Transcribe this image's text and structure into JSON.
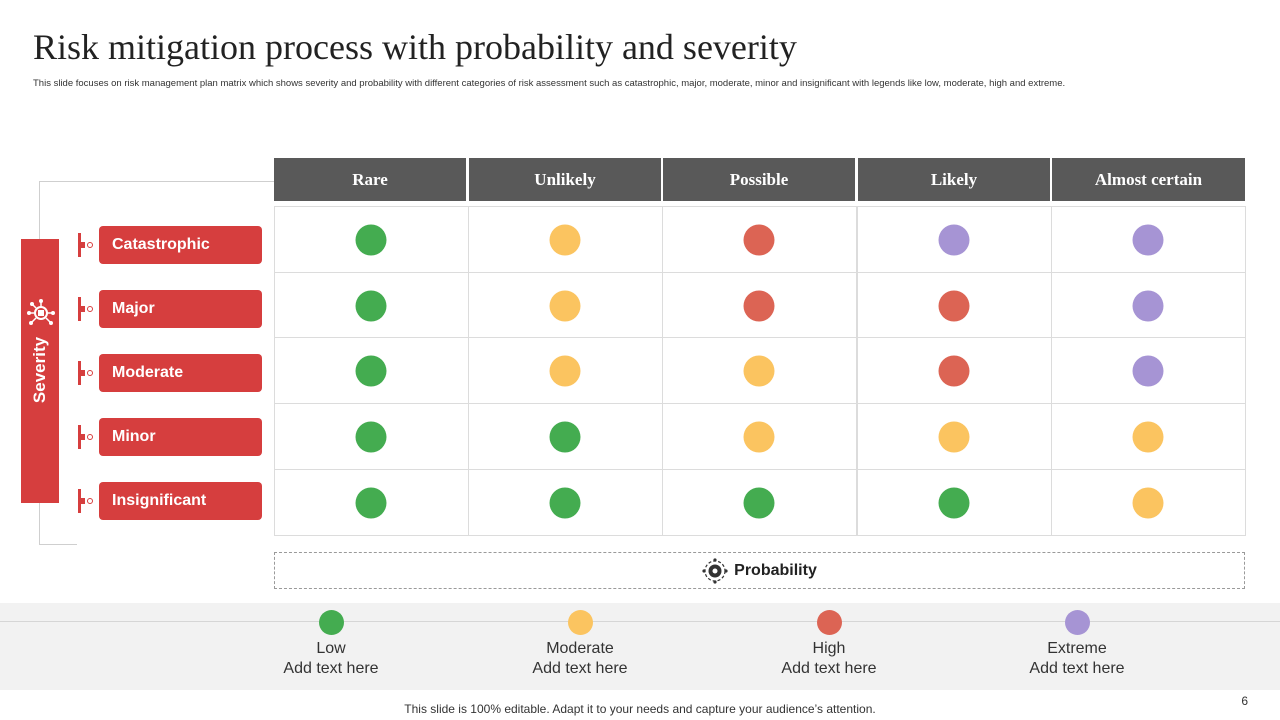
{
  "title": "Risk mitigation process with probability and severity",
  "subtitle": "This slide focuses on risk management plan matrix which shows severity and probability with different categories of risk assessment such as catastrophic, major, moderate, minor and insignificant with legends like low, moderate, high and extreme.",
  "severity_label": "Severity",
  "probability_label": "Probability",
  "columns": [
    "Rare",
    "Unlikely",
    "Possible",
    "Likely",
    "Almost certain"
  ],
  "rows": [
    "Catastrophic",
    "Major",
    "Moderate",
    "Minor",
    "Insignificant"
  ],
  "matrix": [
    [
      "low",
      "moderate",
      "high",
      "extreme",
      "extreme"
    ],
    [
      "low",
      "moderate",
      "high",
      "high",
      "extreme"
    ],
    [
      "low",
      "moderate",
      "moderate",
      "high",
      "extreme"
    ],
    [
      "low",
      "low",
      "moderate",
      "moderate",
      "moderate"
    ],
    [
      "low",
      "low",
      "low",
      "low",
      "moderate"
    ]
  ],
  "colors": {
    "low": "#44ac50",
    "moderate": "#fbc460",
    "high": "#dc6454",
    "extreme": "#a694d4",
    "accent_red": "#d63e3e",
    "header_gray": "#595959"
  },
  "legend": [
    {
      "key": "low",
      "name": "Low",
      "text": "Add text here"
    },
    {
      "key": "moderate",
      "name": "Moderate",
      "text": "Add text here"
    },
    {
      "key": "high",
      "name": "High",
      "text": "Add text here"
    },
    {
      "key": "extreme",
      "name": "Extreme",
      "text": "Add text here"
    }
  ],
  "footer": "This slide is 100% editable. Adapt it to your needs and capture your audience’s attention.",
  "page_number": "6"
}
